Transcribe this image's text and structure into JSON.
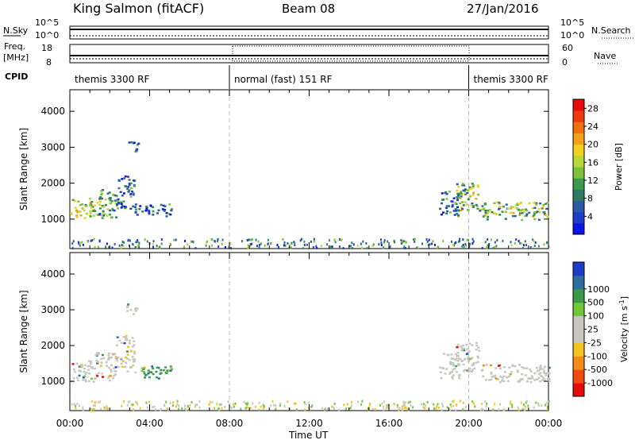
{
  "header": {
    "station": "King Salmon (fitACF)",
    "beam": "Beam 08",
    "date": "27/Jan/2016"
  },
  "noise_panel": {
    "left_label": "N.Sky",
    "right_label": "N.Search",
    "left_ticks": [
      "10^5",
      "10^0"
    ],
    "right_ticks": [
      "10^5",
      "10^0"
    ]
  },
  "freq_panel": {
    "left_label_1": "Freq.",
    "left_label_2": "[MHz]",
    "right_label": "Nave",
    "left_ticks": [
      "18",
      "8"
    ],
    "right_ticks": [
      "60",
      "0"
    ]
  },
  "cpid": {
    "label": "CPID",
    "segments": [
      {
        "name": "themis 3300 RF",
        "start_h": 0,
        "end_h": 8
      },
      {
        "name": "normal (fast) 151 RF",
        "start_h": 8,
        "end_h": 20
      },
      {
        "name": "themis 3300 RF",
        "start_h": 20,
        "end_h": 24
      }
    ]
  },
  "chart_data": [
    {
      "type": "heatmap",
      "title": "Power",
      "xlabel": "Time UT",
      "ylabel": "Slant Range [km]",
      "xlim": [
        0,
        24
      ],
      "ylim": [
        180,
        4600
      ],
      "x_ticks": [
        "00:00",
        "04:00",
        "08:00",
        "12:00",
        "16:00",
        "20:00",
        "00:00"
      ],
      "y_ticks": [
        1000,
        2000,
        3000,
        4000
      ],
      "colorbar": {
        "label": "Power [dB]",
        "ticks": [
          "4",
          "8",
          "12",
          "16",
          "20",
          "24",
          "28"
        ],
        "range": [
          0,
          30
        ],
        "colors": [
          "#0a14e6",
          "#1f3cc8",
          "#2a5aa6",
          "#2e7a6a",
          "#3a9a4a",
          "#7cc23a",
          "#b6d838",
          "#f2d21c",
          "#f4a018",
          "#f07010",
          "#ec3a0c",
          "#e60c0c"
        ]
      },
      "echo_regions": [
        {
          "t0": 0.0,
          "t1": 1.2,
          "r0": 1000,
          "r1": 1600,
          "level": 0.55
        },
        {
          "t0": 1.2,
          "t1": 2.3,
          "r0": 1050,
          "r1": 1850,
          "level": 0.35
        },
        {
          "t0": 2.3,
          "t1": 3.2,
          "r0": 1300,
          "r1": 2300,
          "level": 0.25
        },
        {
          "t0": 3.2,
          "t1": 5.1,
          "r0": 1100,
          "r1": 1450,
          "level": 0.2
        },
        {
          "t0": 2.8,
          "t1": 3.4,
          "r0": 2900,
          "r1": 3200,
          "level": 0.2
        },
        {
          "t0": 18.5,
          "t1": 19.5,
          "r0": 1100,
          "r1": 1800,
          "level": 0.2
        },
        {
          "t0": 19.3,
          "t1": 20.5,
          "r0": 1250,
          "r1": 2100,
          "level": 0.45
        },
        {
          "t0": 20.5,
          "t1": 24.0,
          "r0": 1000,
          "r1": 1500,
          "level": 0.45
        }
      ]
    },
    {
      "type": "heatmap",
      "title": "Velocity",
      "xlabel": "Time UT",
      "ylabel": "Slant Range [km]",
      "xlim": [
        0,
        24
      ],
      "ylim": [
        180,
        4600
      ],
      "x_ticks": [
        "00:00",
        "04:00",
        "08:00",
        "12:00",
        "16:00",
        "20:00",
        "00:00"
      ],
      "y_ticks": [
        1000,
        2000,
        3000,
        4000
      ],
      "colorbar": {
        "label": "Velocity [m s",
        "label_sup": "-1",
        "label_end": "]",
        "ticks": [
          "-1000",
          "-500",
          "-100",
          "-25",
          "25",
          "100",
          "500",
          "1000"
        ],
        "colors": [
          "#e60c0c",
          "#f04a10",
          "#f48a18",
          "#f6c420",
          "#c8c8c0",
          "#c8c8c0",
          "#70c83a",
          "#3a9a4a",
          "#2e6e9e",
          "#1f3cc8"
        ]
      },
      "echo_regions": [
        {
          "t0": 0.0,
          "t1": 1.2,
          "r0": 1000,
          "r1": 1600,
          "level": 0.5
        },
        {
          "t0": 1.2,
          "t1": 2.3,
          "r0": 1050,
          "r1": 1850,
          "level": 0.5
        },
        {
          "t0": 2.3,
          "t1": 3.2,
          "r0": 1300,
          "r1": 2300,
          "level": 0.45
        },
        {
          "t0": 3.2,
          "t1": 5.1,
          "r0": 1100,
          "r1": 1450,
          "level": 0.75
        },
        {
          "t0": 2.8,
          "t1": 3.4,
          "r0": 2900,
          "r1": 3200,
          "level": 0.5
        },
        {
          "t0": 18.5,
          "t1": 19.5,
          "r0": 1100,
          "r1": 1800,
          "level": 0.5
        },
        {
          "t0": 19.3,
          "t1": 20.5,
          "r0": 1250,
          "r1": 2100,
          "level": 0.5
        },
        {
          "t0": 20.5,
          "t1": 24.0,
          "r0": 1000,
          "r1": 1500,
          "level": 0.5
        }
      ]
    }
  ]
}
